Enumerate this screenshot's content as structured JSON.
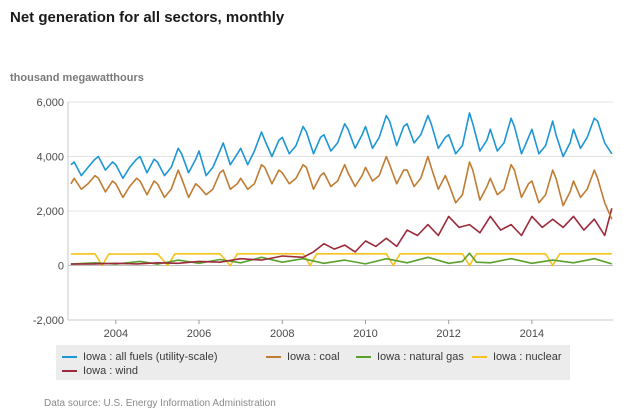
{
  "chart_data": {
    "type": "line",
    "title": "Net generation for all sectors, monthly",
    "ylabel": "thousand megawatthours",
    "xlabel": "",
    "xlim": [
      2002.85,
      2015.95
    ],
    "ylim": [
      -2000,
      6000
    ],
    "yticks": [
      "6,000",
      "4,000",
      "2,000",
      "0",
      "-2,000"
    ],
    "ytick_values": [
      6000,
      4000,
      2000,
      0,
      -2000
    ],
    "xticks": [
      "2004",
      "2006",
      "2008",
      "2010",
      "2012",
      "2014"
    ],
    "xtick_values": [
      2004,
      2006,
      2008,
      2010,
      2012,
      2014
    ],
    "grid": true,
    "series": [
      {
        "name": "Iowa : all fuels (utility-scale)",
        "color": "#1e96d6",
        "x": [
          2002.92,
          2003.0,
          2003.17,
          2003.33,
          2003.5,
          2003.58,
          2003.75,
          2003.92,
          2004.0,
          2004.17,
          2004.33,
          2004.5,
          2004.58,
          2004.75,
          2004.92,
          2005.0,
          2005.17,
          2005.33,
          2005.5,
          2005.58,
          2005.75,
          2005.92,
          2006.0,
          2006.17,
          2006.33,
          2006.5,
          2006.58,
          2006.75,
          2006.92,
          2007.0,
          2007.17,
          2007.33,
          2007.5,
          2007.58,
          2007.75,
          2007.92,
          2008.0,
          2008.17,
          2008.33,
          2008.5,
          2008.58,
          2008.75,
          2008.92,
          2009.0,
          2009.17,
          2009.33,
          2009.5,
          2009.58,
          2009.75,
          2009.92,
          2010.0,
          2010.17,
          2010.33,
          2010.5,
          2010.58,
          2010.75,
          2010.92,
          2011.0,
          2011.17,
          2011.33,
          2011.5,
          2011.58,
          2011.75,
          2011.92,
          2012.0,
          2012.17,
          2012.33,
          2012.5,
          2012.58,
          2012.75,
          2012.92,
          2013.0,
          2013.17,
          2013.33,
          2013.5,
          2013.58,
          2013.75,
          2013.92,
          2014.0,
          2014.17,
          2014.33,
          2014.5,
          2014.58,
          2014.75,
          2014.92,
          2015.0,
          2015.17,
          2015.33,
          2015.5,
          2015.58,
          2015.75,
          2015.92
        ],
        "values": [
          3700,
          3800,
          3300,
          3600,
          3900,
          4000,
          3500,
          3800,
          3700,
          3200,
          3600,
          3900,
          4000,
          3400,
          3900,
          3800,
          3300,
          3600,
          4300,
          4100,
          3400,
          3900,
          4200,
          3300,
          3600,
          4200,
          4500,
          3700,
          4100,
          4300,
          3700,
          4200,
          4900,
          4600,
          4000,
          4600,
          4700,
          4100,
          4400,
          5100,
          4900,
          4100,
          4700,
          4800,
          4200,
          4500,
          5200,
          5000,
          4300,
          4800,
          5100,
          4300,
          4700,
          5500,
          5300,
          4400,
          5100,
          5200,
          4500,
          4800,
          5500,
          5200,
          4300,
          4700,
          4800,
          4100,
          4400,
          5600,
          5200,
          4200,
          4600,
          5000,
          4200,
          4500,
          5400,
          5100,
          4100,
          4700,
          5000,
          4100,
          4400,
          5300,
          4800,
          4000,
          4500,
          5000,
          4300,
          4700,
          5400,
          5300,
          4500,
          4100
        ]
      },
      {
        "name": "Iowa : coal",
        "color": "#c07c33",
        "x": [
          2002.92,
          2003.0,
          2003.17,
          2003.33,
          2003.5,
          2003.58,
          2003.75,
          2003.92,
          2004.0,
          2004.17,
          2004.33,
          2004.5,
          2004.58,
          2004.75,
          2004.92,
          2005.0,
          2005.17,
          2005.33,
          2005.5,
          2005.58,
          2005.75,
          2005.92,
          2006.0,
          2006.17,
          2006.33,
          2006.5,
          2006.58,
          2006.75,
          2006.92,
          2007.0,
          2007.17,
          2007.33,
          2007.5,
          2007.58,
          2007.75,
          2007.92,
          2008.0,
          2008.17,
          2008.33,
          2008.5,
          2008.58,
          2008.75,
          2008.92,
          2009.0,
          2009.17,
          2009.33,
          2009.5,
          2009.58,
          2009.75,
          2009.92,
          2010.0,
          2010.17,
          2010.33,
          2010.5,
          2010.58,
          2010.75,
          2010.92,
          2011.0,
          2011.17,
          2011.33,
          2011.5,
          2011.58,
          2011.75,
          2011.92,
          2012.0,
          2012.17,
          2012.33,
          2012.5,
          2012.58,
          2012.75,
          2012.92,
          2013.0,
          2013.17,
          2013.33,
          2013.5,
          2013.58,
          2013.75,
          2013.92,
          2014.0,
          2014.17,
          2014.33,
          2014.5,
          2014.58,
          2014.75,
          2014.92,
          2015.0,
          2015.17,
          2015.33,
          2015.5,
          2015.58,
          2015.75,
          2015.92
        ],
        "values": [
          3000,
          3200,
          2800,
          3000,
          3300,
          3200,
          2700,
          3100,
          3000,
          2500,
          2900,
          3200,
          3100,
          2600,
          3100,
          3000,
          2500,
          2800,
          3500,
          3200,
          2500,
          3000,
          2900,
          2600,
          2800,
          3400,
          3500,
          2800,
          3000,
          3200,
          2800,
          3000,
          3700,
          3600,
          3000,
          3500,
          3400,
          3000,
          3200,
          3700,
          3600,
          2800,
          3300,
          3400,
          2900,
          3100,
          3700,
          3400,
          2900,
          3300,
          3600,
          3100,
          3300,
          4000,
          3700,
          3000,
          3500,
          3500,
          2900,
          3200,
          4000,
          3600,
          2800,
          3300,
          3000,
          2300,
          2600,
          3800,
          3500,
          2400,
          2900,
          3200,
          2600,
          2800,
          3700,
          3500,
          2500,
          3000,
          3100,
          2300,
          2600,
          3500,
          3200,
          2200,
          2700,
          3100,
          2500,
          2800,
          3500,
          3200,
          2300,
          1700
        ]
      },
      {
        "name": "Iowa : natural gas",
        "color": "#5aa02c",
        "x": [
          2002.92,
          2003.5,
          2004.0,
          2004.58,
          2005.0,
          2005.5,
          2006.0,
          2006.5,
          2007.0,
          2007.5,
          2008.0,
          2008.5,
          2009.0,
          2009.5,
          2010.0,
          2010.5,
          2011.0,
          2011.5,
          2012.0,
          2012.33,
          2012.5,
          2012.67,
          2013.0,
          2013.5,
          2014.0,
          2014.5,
          2015.0,
          2015.5,
          2015.92
        ],
        "values": [
          50,
          100,
          50,
          150,
          50,
          200,
          80,
          220,
          100,
          300,
          120,
          250,
          80,
          200,
          60,
          250,
          100,
          300,
          80,
          150,
          450,
          120,
          100,
          250,
          80,
          200,
          100,
          250,
          60
        ]
      },
      {
        "name": "Iowa : nuclear",
        "color": "#f6c21b",
        "x": [
          2002.92,
          2003.5,
          2003.67,
          2003.83,
          2004.5,
          2005.0,
          2005.25,
          2005.42,
          2006.5,
          2006.75,
          2006.92,
          2007.5,
          2008.0,
          2008.5,
          2008.67,
          2008.83,
          2009.5,
          2010.0,
          2010.5,
          2010.67,
          2010.83,
          2011.5,
          2012.0,
          2012.33,
          2012.5,
          2012.67,
          2013.5,
          2014.0,
          2014.33,
          2014.5,
          2014.67,
          2015.5,
          2015.92
        ],
        "values": [
          420,
          430,
          0,
          420,
          420,
          430,
          0,
          430,
          430,
          0,
          430,
          430,
          430,
          430,
          0,
          430,
          430,
          430,
          430,
          0,
          430,
          430,
          430,
          430,
          0,
          430,
          430,
          430,
          430,
          0,
          430,
          430,
          430
        ]
      },
      {
        "name": "Iowa : wind",
        "color": "#9c2a3a",
        "x": [
          2002.92,
          2003.5,
          2004.0,
          2004.5,
          2005.0,
          2005.5,
          2006.0,
          2006.5,
          2007.0,
          2007.5,
          2008.0,
          2008.5,
          2008.75,
          2009.0,
          2009.25,
          2009.5,
          2009.75,
          2010.0,
          2010.25,
          2010.5,
          2010.75,
          2011.0,
          2011.25,
          2011.5,
          2011.75,
          2012.0,
          2012.25,
          2012.5,
          2012.75,
          2013.0,
          2013.25,
          2013.5,
          2013.75,
          2014.0,
          2014.25,
          2014.5,
          2014.75,
          2015.0,
          2015.25,
          2015.5,
          2015.75,
          2015.92
        ],
        "values": [
          50,
          60,
          80,
          60,
          100,
          80,
          150,
          120,
          250,
          200,
          350,
          300,
          500,
          800,
          600,
          750,
          500,
          900,
          700,
          1000,
          700,
          1300,
          1100,
          1500,
          1100,
          1800,
          1400,
          1500,
          1200,
          1800,
          1300,
          1500,
          1100,
          1800,
          1400,
          1700,
          1400,
          1800,
          1300,
          1700,
          1100,
          2100
        ]
      }
    ],
    "legend": "bottom",
    "source": "Data source: U.S. Energy Information Administration"
  }
}
